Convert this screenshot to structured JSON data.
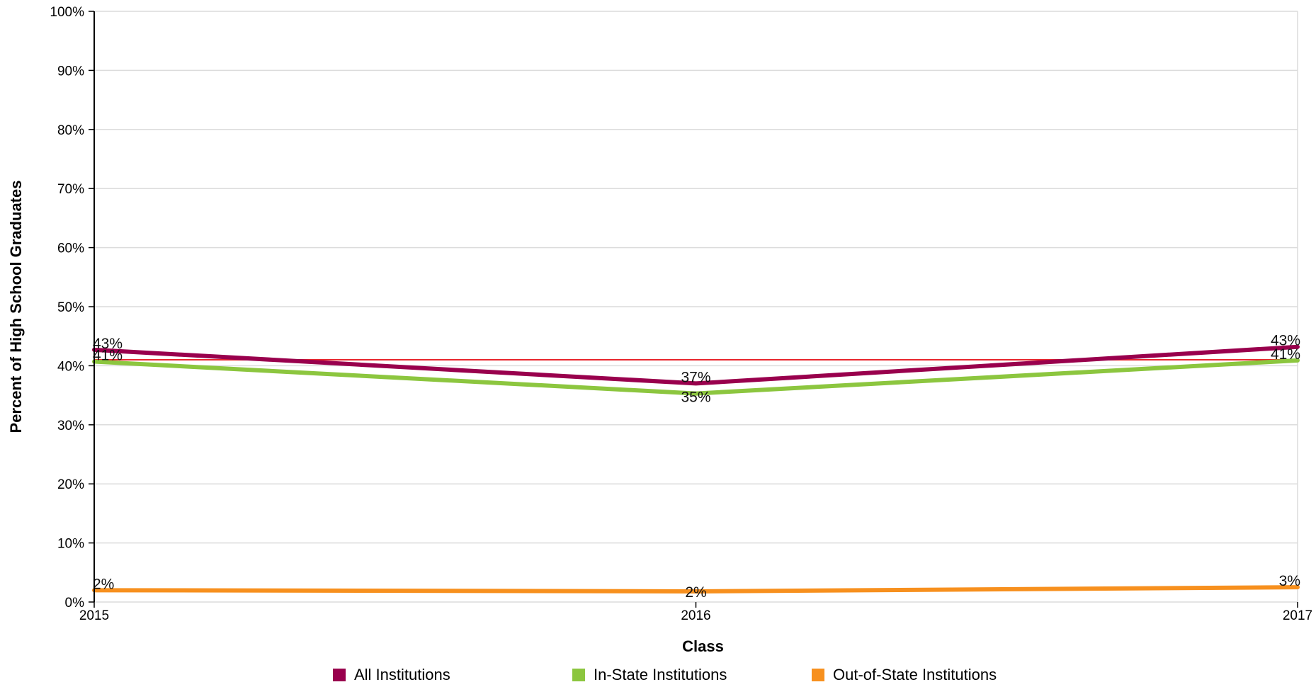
{
  "chart_data": {
    "type": "line",
    "x": [
      "2015",
      "2016",
      "2017"
    ],
    "xlabel": "Class",
    "ylabel": "Percent of High School Graduates",
    "ylim": [
      0,
      100
    ],
    "yticks": [
      "0%",
      "10%",
      "20%",
      "30%",
      "40%",
      "50%",
      "60%",
      "70%",
      "80%",
      "90%",
      "100%"
    ],
    "grid": true,
    "legend_position": "bottom",
    "series": [
      {
        "name": "All Institutions",
        "color": "#99004d",
        "values": [
          42.7,
          37.0,
          43.2
        ],
        "labels": [
          "43%",
          "37%",
          "43%"
        ]
      },
      {
        "name": "In-State Institutions",
        "color": "#8cc63f",
        "values": [
          40.7,
          35.3,
          40.9
        ],
        "labels": [
          "41%",
          "35%",
          "41%"
        ]
      },
      {
        "name": "Out-of-State Institutions",
        "color": "#f7901e",
        "values": [
          2.0,
          1.8,
          2.5
        ],
        "labels": [
          "2%",
          "2%",
          "3%"
        ]
      }
    ],
    "reference_line": {
      "value": 41.0,
      "color": "#e8262d"
    }
  }
}
